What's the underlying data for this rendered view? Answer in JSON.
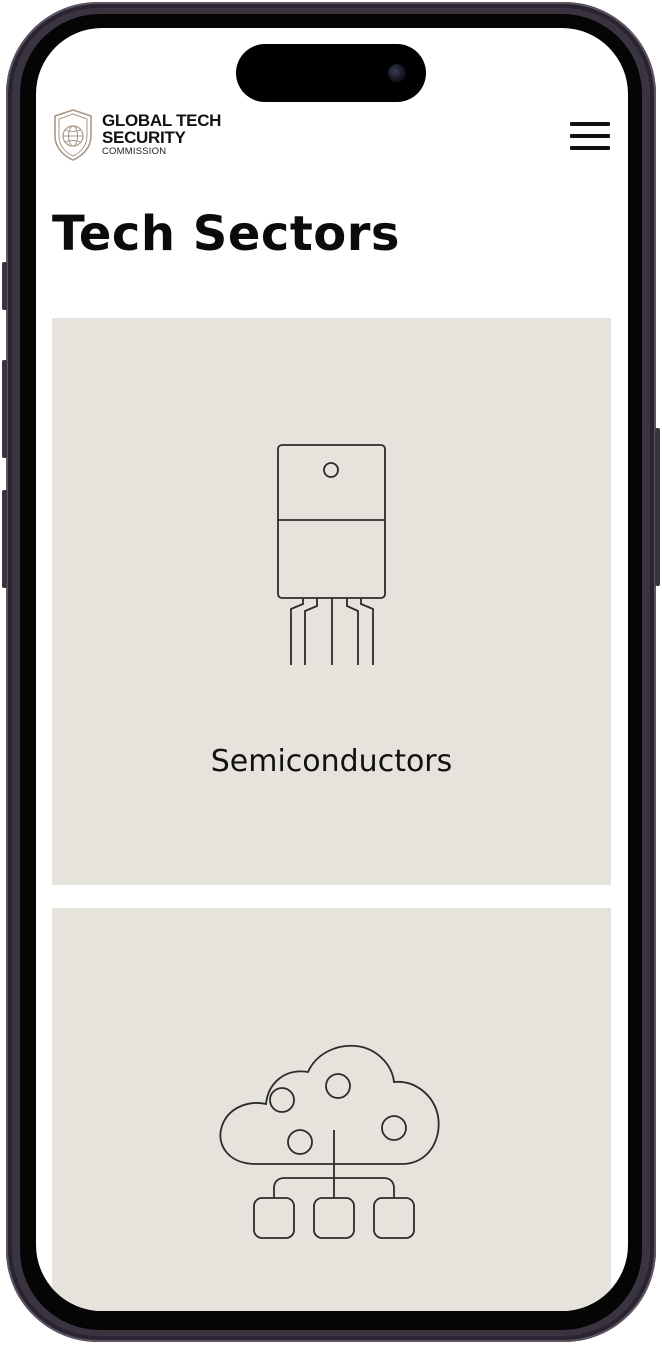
{
  "device": {
    "frame_color": "#3a3340",
    "camera_icon": "front-camera-icon"
  },
  "header": {
    "logo": {
      "line1": "GLOBAL TECH",
      "line2": "SECURITY",
      "line3": "COMMISSION",
      "icon": "shield-globe-icon",
      "accent_color": "#a8998a"
    },
    "menu_icon": "hamburger-menu-icon"
  },
  "main": {
    "title": "Tech Sectors",
    "card_background": "#e6e2dc",
    "cards": [
      {
        "label": "Semiconductors",
        "icon": "semiconductor-chip-icon"
      },
      {
        "label": "",
        "icon": "cloud-network-icon"
      }
    ]
  }
}
